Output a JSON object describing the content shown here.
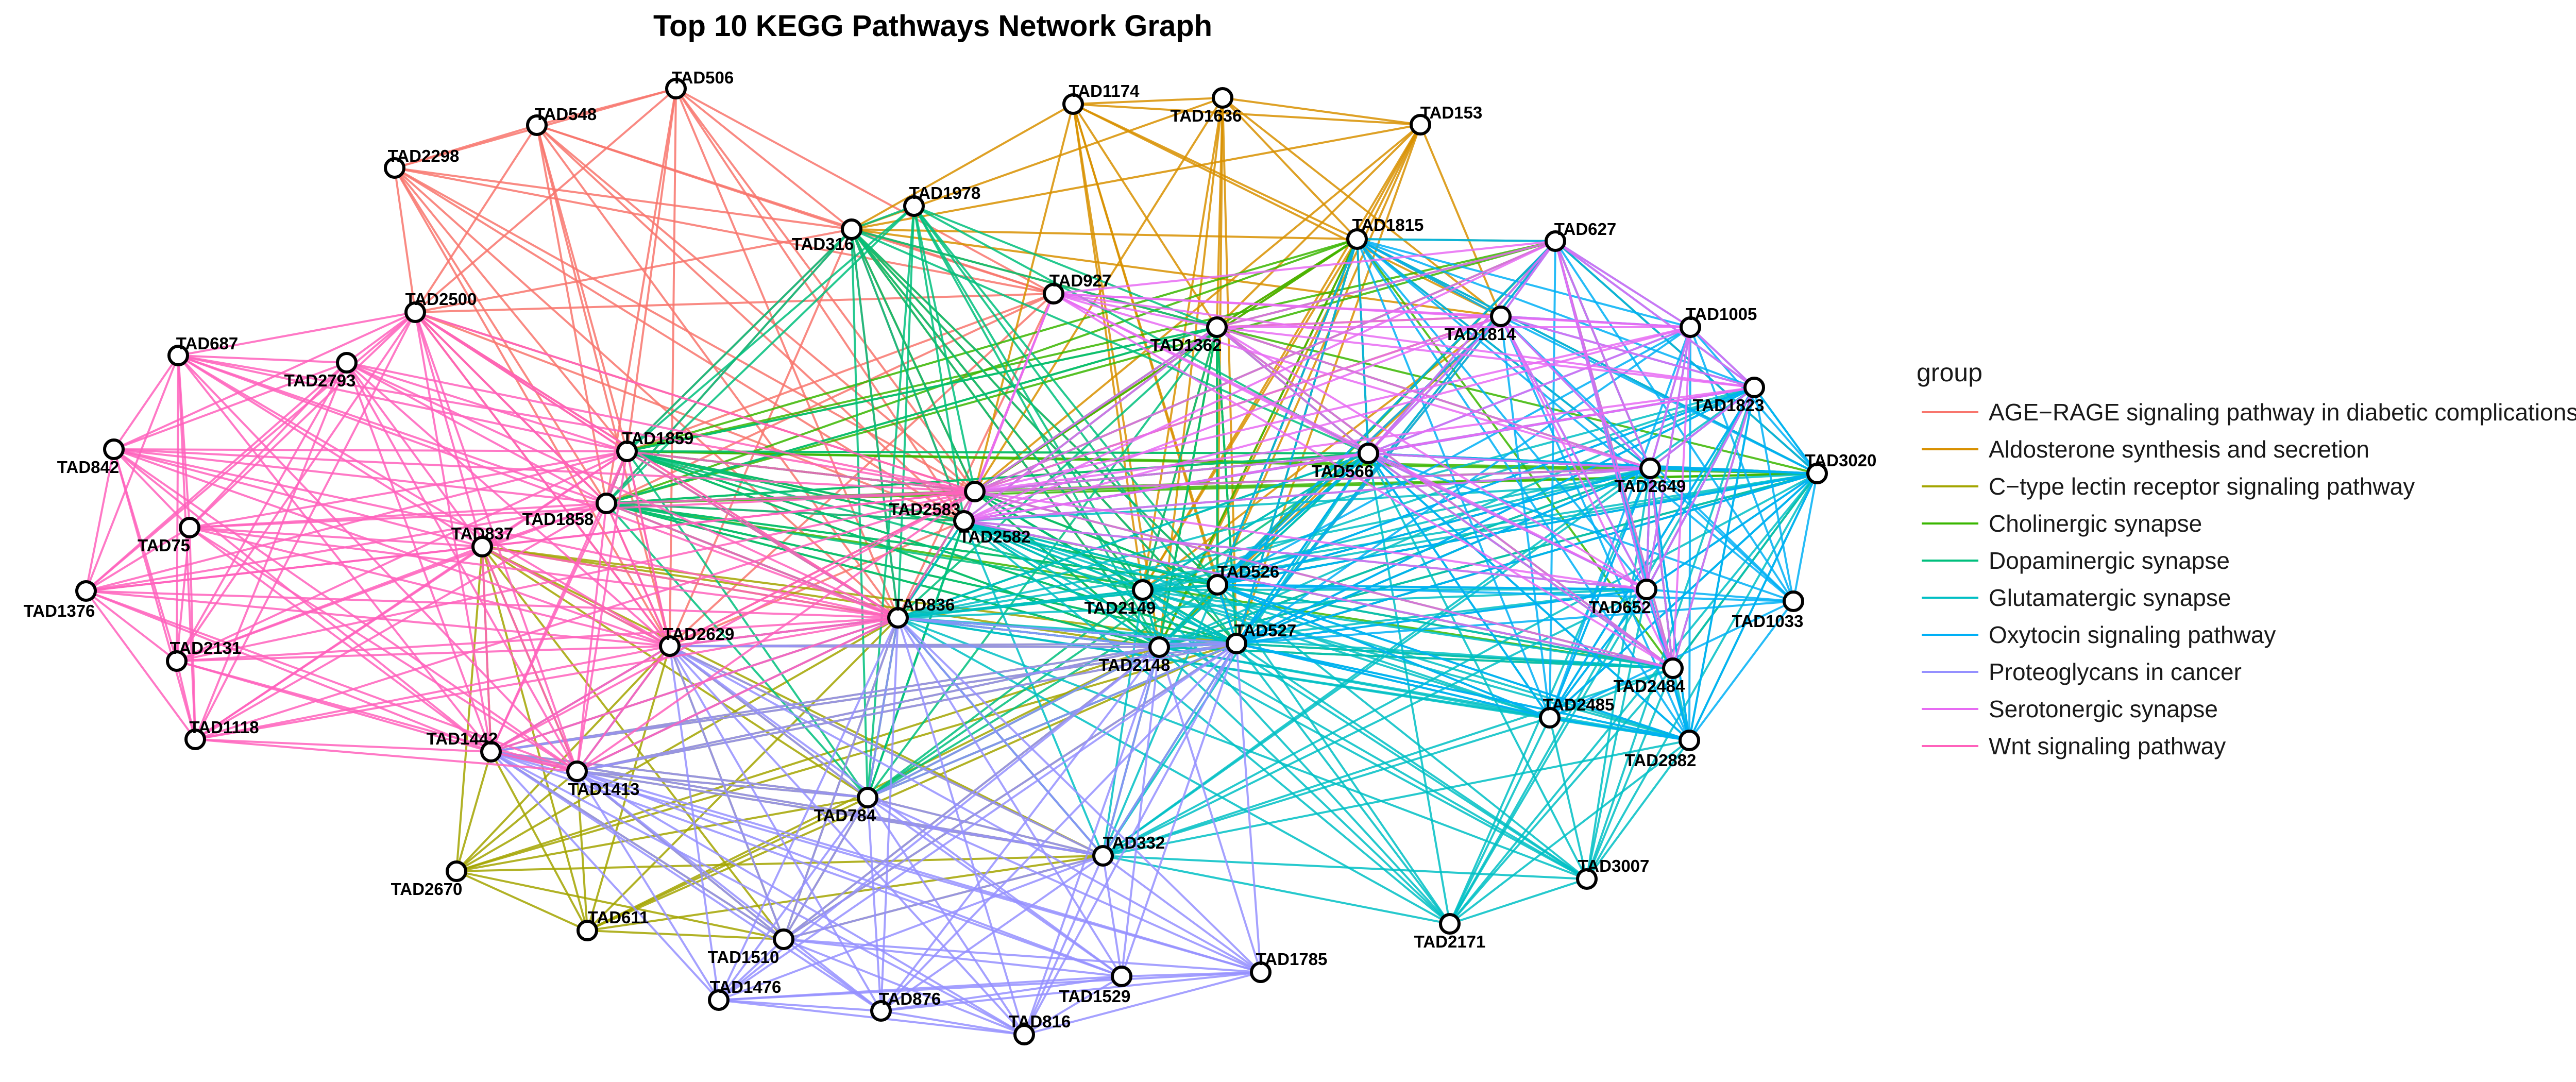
{
  "title": "Top 10 KEGG Pathways Network Graph",
  "legend": {
    "title": "group",
    "items": [
      {
        "label": "AGE−RAGE signaling pathway in diabetic complications",
        "color": "#F8766D"
      },
      {
        "label": "Aldosterone synthesis and secretion",
        "color": "#D89000"
      },
      {
        "label": "C−type lectin receptor signaling pathway",
        "color": "#A3A500"
      },
      {
        "label": "Cholinergic synapse",
        "color": "#39B600"
      },
      {
        "label": "Dopaminergic synapse",
        "color": "#00BF7D"
      },
      {
        "label": "Glutamatergic synapse",
        "color": "#00BFC4"
      },
      {
        "label": "Oxytocin signaling pathway",
        "color": "#00B0F6"
      },
      {
        "label": "Proteoglycans in cancer",
        "color": "#9590FF"
      },
      {
        "label": "Serotonergic synapse",
        "color": "#E76BF3"
      },
      {
        "label": "Wnt signaling pathway",
        "color": "#FF62BC"
      }
    ]
  },
  "nodes": [
    {
      "id": "TAD506"
    },
    {
      "id": "TAD548"
    },
    {
      "id": "TAD2298"
    },
    {
      "id": "TAD316"
    },
    {
      "id": "TAD1978"
    },
    {
      "id": "TAD1174"
    },
    {
      "id": "TAD1636"
    },
    {
      "id": "TAD153"
    },
    {
      "id": "TAD1815"
    },
    {
      "id": "TAD627"
    },
    {
      "id": "TAD927"
    },
    {
      "id": "TAD1362"
    },
    {
      "id": "TAD1814"
    },
    {
      "id": "TAD1005"
    },
    {
      "id": "TAD1823"
    },
    {
      "id": "TAD3020"
    },
    {
      "id": "TAD2500"
    },
    {
      "id": "TAD687"
    },
    {
      "id": "TAD2793"
    },
    {
      "id": "TAD842"
    },
    {
      "id": "TAD1859"
    },
    {
      "id": "TAD1858"
    },
    {
      "id": "TAD75"
    },
    {
      "id": "TAD837"
    },
    {
      "id": "TAD1376"
    },
    {
      "id": "TAD2583"
    },
    {
      "id": "TAD2582"
    },
    {
      "id": "TAD566"
    },
    {
      "id": "TAD2649"
    },
    {
      "id": "TAD836"
    },
    {
      "id": "TAD2149"
    },
    {
      "id": "TAD526"
    },
    {
      "id": "TAD652"
    },
    {
      "id": "TAD1033"
    },
    {
      "id": "TAD2131"
    },
    {
      "id": "TAD2629"
    },
    {
      "id": "TAD2148"
    },
    {
      "id": "TAD527"
    },
    {
      "id": "TAD2484"
    },
    {
      "id": "TAD2485"
    },
    {
      "id": "TAD2882"
    },
    {
      "id": "TAD1118"
    },
    {
      "id": "TAD1442"
    },
    {
      "id": "TAD1413"
    },
    {
      "id": "TAD784"
    },
    {
      "id": "TAD332"
    },
    {
      "id": "TAD2670"
    },
    {
      "id": "TAD611"
    },
    {
      "id": "TAD1510"
    },
    {
      "id": "TAD3007"
    },
    {
      "id": "TAD2171"
    },
    {
      "id": "TAD1785"
    },
    {
      "id": "TAD1529"
    },
    {
      "id": "TAD1476"
    },
    {
      "id": "TAD876"
    },
    {
      "id": "TAD816"
    }
  ],
  "groups": {
    "AGE−RAGE signaling pathway in diabetic complications": [
      "TAD506",
      "TAD548",
      "TAD2298",
      "TAD316",
      "TAD927",
      "TAD2500",
      "TAD1859",
      "TAD1858",
      "TAD2583",
      "TAD2582",
      "TAD836",
      "TAD2629"
    ],
    "Aldosterone synthesis and secretion": [
      "TAD1174",
      "TAD1636",
      "TAD153",
      "TAD1815",
      "TAD1362",
      "TAD1814",
      "TAD316",
      "TAD2583",
      "TAD2149",
      "TAD526",
      "TAD2148",
      "TAD527"
    ],
    "C−type lectin receptor signaling pathway": [
      "TAD837",
      "TAD2629",
      "TAD2670",
      "TAD611",
      "TAD1510",
      "TAD332",
      "TAD784",
      "TAD1413",
      "TAD1442",
      "TAD836",
      "TAD2148",
      "TAD527"
    ],
    "Cholinergic synapse": [
      "TAD627",
      "TAD1815",
      "TAD1362",
      "TAD566",
      "TAD2649",
      "TAD3020",
      "TAD2484",
      "TAD526",
      "TAD2148",
      "TAD527",
      "TAD2583",
      "TAD1859",
      "TAD1858"
    ],
    "Dopaminergic synapse": [
      "TAD1978",
      "TAD1859",
      "TAD1858",
      "TAD2583",
      "TAD2582",
      "TAD836",
      "TAD784",
      "TAD2149",
      "TAD526",
      "TAD2148",
      "TAD527",
      "TAD566",
      "TAD1362",
      "TAD316"
    ],
    "Glutamatergic synapse": [
      "TAD566",
      "TAD2649",
      "TAD652",
      "TAD2484",
      "TAD2485",
      "TAD2882",
      "TAD3007",
      "TAD2171",
      "TAD527",
      "TAD526",
      "TAD2148",
      "TAD2149",
      "TAD332",
      "TAD836",
      "TAD2582",
      "TAD1823",
      "TAD3020"
    ],
    "Oxytocin signaling pathway": [
      "TAD1815",
      "TAD627",
      "TAD1814",
      "TAD1005",
      "TAD1823",
      "TAD3020",
      "TAD1033",
      "TAD652",
      "TAD2882",
      "TAD2485",
      "TAD566",
      "TAD2649",
      "TAD527",
      "TAD526"
    ],
    "Proteoglycans in cancer": [
      "TAD1413",
      "TAD1442",
      "TAD1510",
      "TAD1476",
      "TAD876",
      "TAD816",
      "TAD1529",
      "TAD1785",
      "TAD332",
      "TAD784",
      "TAD2148",
      "TAD527",
      "TAD2629",
      "TAD836"
    ],
    "Serotonergic synapse": [
      "TAD927",
      "TAD1362",
      "TAD1814",
      "TAD1005",
      "TAD627",
      "TAD2649",
      "TAD652",
      "TAD2484",
      "TAD566",
      "TAD2583",
      "TAD2582",
      "TAD1823"
    ],
    "Wnt signaling pathway": [
      "TAD687",
      "TAD2793",
      "TAD842",
      "TAD75",
      "TAD1376",
      "TAD2131",
      "TAD1118",
      "TAD1442",
      "TAD1413",
      "TAD837",
      "TAD1858",
      "TAD1859",
      "TAD2500",
      "TAD2629",
      "TAD836",
      "TAD2583"
    ]
  }
}
